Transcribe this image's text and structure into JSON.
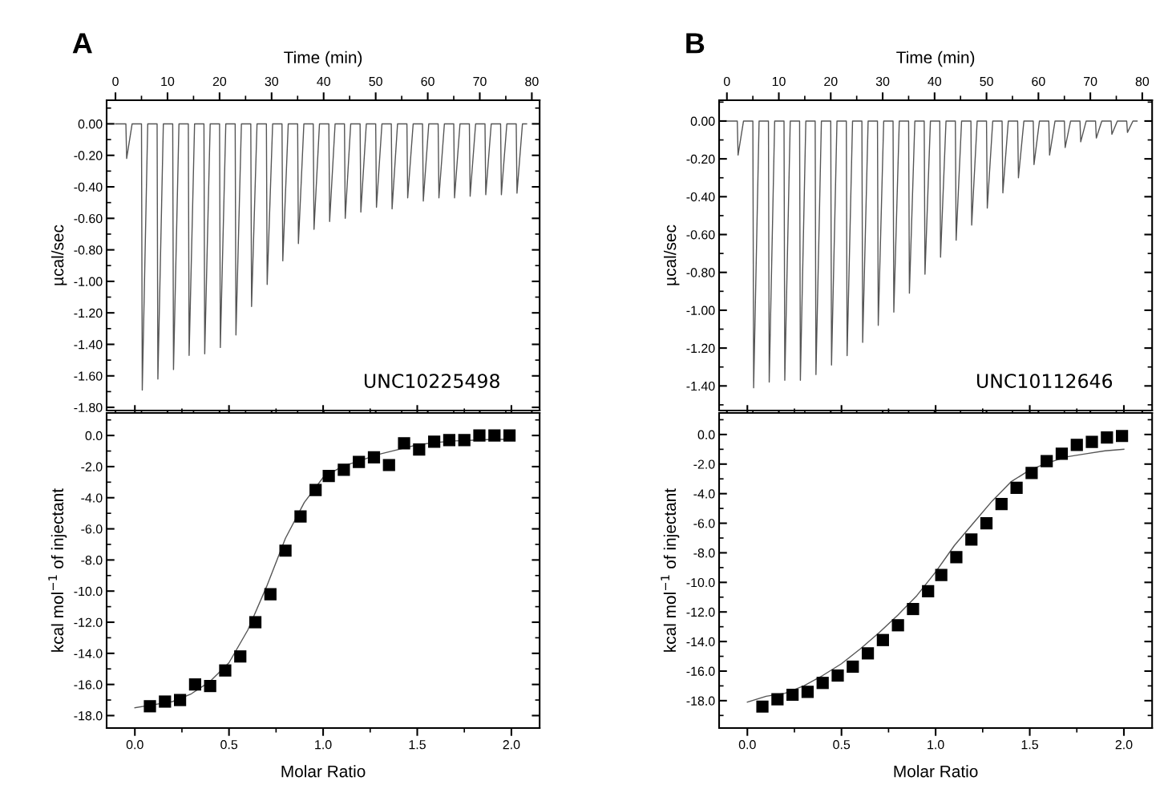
{
  "chart_data": [
    {
      "type": "line",
      "title": "A",
      "xlabel": "Time (min)",
      "ylabel": "µcal/sec",
      "annotations": [
        "UNC10225498"
      ],
      "xlim": [
        -1.7,
        81.5
      ],
      "xticks": [
        0,
        10,
        20,
        30,
        40,
        50,
        60,
        70,
        80
      ],
      "ylim": [
        -1.82,
        0.15
      ],
      "yticks": [
        {
          "value": 0,
          "label": "0.00"
        },
        {
          "value": -0.2,
          "label": "-0.20"
        },
        {
          "value": -0.4,
          "label": "-0.40"
        },
        {
          "value": -0.6,
          "label": "-0.60"
        },
        {
          "value": -0.8,
          "label": "-0.80"
        },
        {
          "value": -1.0,
          "label": "-1.00"
        },
        {
          "value": -1.2,
          "label": "-1.20"
        },
        {
          "value": -1.4,
          "label": "-1.40"
        },
        {
          "value": -1.6,
          "label": "-1.60"
        },
        {
          "value": -1.8,
          "label": "-1.80"
        }
      ],
      "series": [
        {
          "color": "#555555",
          "x": [
            0,
            2,
            2.15,
            3.2,
            5,
            5.15,
            6.2,
            8,
            8.15,
            9.2,
            11,
            11.15,
            12.2,
            14,
            14.15,
            15.2,
            17,
            17.15,
            18.2,
            20,
            20.15,
            21.2,
            23,
            23.15,
            24.2,
            26,
            26.15,
            27.2,
            29,
            29.15,
            30.2,
            32,
            32.15,
            33.2,
            35,
            35.15,
            36.2,
            38,
            38.15,
            39.2,
            41,
            41.15,
            42.2,
            44,
            44.15,
            45.2,
            47,
            47.15,
            48.2,
            50,
            50.15,
            51.2,
            53,
            53.15,
            54.2,
            56,
            56.15,
            57.2,
            59,
            59.15,
            60.2,
            62,
            62.15,
            63.2,
            65,
            65.15,
            66.2,
            68,
            68.15,
            69.2,
            71,
            71.15,
            72.2,
            74,
            74.15,
            75.2,
            77,
            77.15,
            78.2,
            79
          ],
          "values": [
            0,
            0,
            -0.22,
            0,
            0,
            -1.69,
            0,
            0,
            -1.62,
            0,
            0,
            -1.56,
            0,
            0,
            -1.47,
            0,
            0,
            -1.46,
            0,
            0,
            -1.42,
            0,
            0,
            -1.34,
            0,
            0,
            -1.16,
            0,
            0,
            -1.02,
            0,
            0,
            -0.87,
            0,
            0,
            -0.76,
            0,
            0,
            -0.67,
            0,
            0,
            -0.62,
            0,
            0,
            -0.6,
            0,
            0,
            -0.56,
            0,
            0,
            -0.53,
            0,
            0,
            -0.54,
            0,
            0,
            -0.47,
            0,
            0,
            -0.49,
            0,
            0,
            -0.47,
            0,
            0,
            -0.47,
            0,
            0,
            -0.46,
            0,
            0,
            -0.45,
            0,
            0,
            -0.45,
            0,
            0,
            -0.44,
            0,
            0
          ]
        }
      ]
    },
    {
      "type": "scatter",
      "xlabel": "Molar Ratio",
      "ylabel": "kcal mol$^{−1}$ of injectant",
      "xlim": [
        -0.15,
        2.15
      ],
      "xticks": [
        {
          "value": 0,
          "label": "0.0"
        },
        {
          "value": 0.5,
          "label": "0.5"
        },
        {
          "value": 1.0,
          "label": "1.0"
        },
        {
          "value": 1.5,
          "label": "1.5"
        },
        {
          "value": 2.0,
          "label": "2.0"
        }
      ],
      "ylim": [
        -18.8,
        1.45
      ],
      "yticks": [
        {
          "value": 0,
          "label": "0.0"
        },
        {
          "value": -2,
          "label": "-2.0"
        },
        {
          "value": -4,
          "label": "-4.0"
        },
        {
          "value": -6,
          "label": "-6.0"
        },
        {
          "value": -8,
          "label": "-8.0"
        },
        {
          "value": -10,
          "label": "-10.0"
        },
        {
          "value": -12,
          "label": "-12.0"
        },
        {
          "value": -14,
          "label": "-14.0"
        },
        {
          "value": -16,
          "label": "-16.0"
        },
        {
          "value": -18,
          "label": "-18.0"
        }
      ],
      "series": [
        {
          "type": "scatter",
          "marker": "square",
          "color": "#000000",
          "x": [
            0.08,
            0.16,
            0.24,
            0.32,
            0.4,
            0.48,
            0.56,
            0.64,
            0.72,
            0.8,
            0.88,
            0.96,
            1.03,
            1.11,
            1.19,
            1.27,
            1.35,
            1.43,
            1.51,
            1.59,
            1.67,
            1.75,
            1.83,
            1.91,
            1.99
          ],
          "values": [
            -17.4,
            -17.1,
            -17.0,
            -16.0,
            -16.1,
            -15.1,
            -14.2,
            -12.0,
            -10.2,
            -7.4,
            -5.2,
            -3.5,
            -2.6,
            -2.2,
            -1.7,
            -1.4,
            -1.9,
            -0.5,
            -0.9,
            -0.4,
            -0.3,
            -0.3,
            -0.0,
            -0.0,
            -0.0
          ]
        },
        {
          "type": "line",
          "color": "#555555",
          "x": [
            0.0,
            0.1,
            0.2,
            0.3,
            0.4,
            0.5,
            0.6,
            0.7,
            0.8,
            0.9,
            1.0,
            1.1,
            1.2,
            1.3,
            1.4,
            1.5,
            1.6,
            1.7,
            1.8,
            1.9,
            2.0
          ],
          "values": [
            -17.5,
            -17.3,
            -17.1,
            -16.6,
            -15.8,
            -14.6,
            -12.5,
            -9.7,
            -6.6,
            -4.3,
            -2.7,
            -2.0,
            -1.6,
            -1.2,
            -0.9,
            -0.6,
            -0.45,
            -0.35,
            -0.3,
            -0.25,
            -0.25
          ]
        }
      ]
    },
    {
      "type": "line",
      "title": "B",
      "xlabel": "Time (min)",
      "ylabel": "µcal/sec",
      "annotations": [
        "UNC10112646"
      ],
      "xlim": [
        -1.5,
        81.9
      ],
      "xticks": [
        0,
        10,
        20,
        30,
        40,
        50,
        60,
        70,
        80
      ],
      "ylim": [
        -1.53,
        0.11
      ],
      "yticks": [
        {
          "value": 0,
          "label": "0.00"
        },
        {
          "value": -0.2,
          "label": "-0.20"
        },
        {
          "value": -0.4,
          "label": "-0.40"
        },
        {
          "value": -0.6,
          "label": "-0.60"
        },
        {
          "value": -0.8,
          "label": "-0.80"
        },
        {
          "value": -1.0,
          "label": "-1.00"
        },
        {
          "value": -1.2,
          "label": "-1.20"
        },
        {
          "value": -1.4,
          "label": "-1.40"
        }
      ],
      "series": [
        {
          "color": "#555555",
          "x": [
            0,
            2,
            2.15,
            3.2,
            5,
            5.15,
            6.2,
            8,
            8.15,
            9.2,
            11,
            11.15,
            12.2,
            14,
            14.15,
            15.2,
            17,
            17.15,
            18.2,
            20,
            20.15,
            21.2,
            23,
            23.15,
            24.2,
            26,
            26.15,
            27.2,
            29,
            29.15,
            30.2,
            32,
            32.15,
            33.2,
            35,
            35.15,
            36.2,
            38,
            38.15,
            39.2,
            41,
            41.15,
            42.2,
            44,
            44.15,
            45.2,
            47,
            47.15,
            48.2,
            50,
            50.15,
            51.2,
            53,
            53.15,
            54.2,
            56,
            56.15,
            57.2,
            59,
            59.15,
            60.2,
            62,
            62.15,
            63.2,
            65,
            65.15,
            66.2,
            68,
            68.15,
            69.2,
            71,
            71.15,
            72.2,
            74,
            74.15,
            75.2,
            77,
            77.15,
            78.2,
            79
          ],
          "values": [
            0,
            0,
            -0.18,
            0,
            0,
            -1.41,
            0,
            0,
            -1.38,
            0,
            0,
            -1.37,
            0,
            0,
            -1.37,
            0,
            0,
            -1.34,
            0,
            0,
            -1.29,
            0,
            0,
            -1.24,
            0,
            0,
            -1.17,
            0,
            0,
            -1.08,
            0,
            0,
            -1.01,
            0,
            0,
            -0.91,
            0,
            0,
            -0.81,
            0,
            0,
            -0.72,
            0,
            0,
            -0.63,
            0,
            0,
            -0.55,
            0,
            0,
            -0.46,
            0,
            0,
            -0.38,
            0,
            0,
            -0.3,
            0,
            0,
            -0.23,
            0,
            0,
            -0.18,
            0,
            0,
            -0.14,
            0,
            0,
            -0.11,
            0,
            0,
            -0.09,
            0,
            0,
            -0.07,
            0,
            0,
            -0.06,
            0,
            0
          ]
        }
      ]
    },
    {
      "type": "scatter",
      "xlabel": "Molar Ratio",
      "ylabel": "kcal mol$^{−1}$ of injectant",
      "xlim": [
        -0.15,
        2.15
      ],
      "xticks": [
        {
          "value": 0,
          "label": "0.0"
        },
        {
          "value": 0.5,
          "label": "0.5"
        },
        {
          "value": 1.0,
          "label": "1.0"
        },
        {
          "value": 1.5,
          "label": "1.5"
        },
        {
          "value": 2.0,
          "label": "2.0"
        }
      ],
      "ylim": [
        -19.85,
        1.46
      ],
      "yticks": [
        {
          "value": 0,
          "label": "0.0"
        },
        {
          "value": -2,
          "label": "-2.0"
        },
        {
          "value": -4,
          "label": "-4.0"
        },
        {
          "value": -6,
          "label": "-6.0"
        },
        {
          "value": -8,
          "label": "-8.0"
        },
        {
          "value": -10,
          "label": "-10.0"
        },
        {
          "value": -12,
          "label": "-12.0"
        },
        {
          "value": -14,
          "label": "-14.0"
        },
        {
          "value": -16,
          "label": "-16.0"
        },
        {
          "value": -18,
          "label": "-18.0"
        }
      ],
      "series": [
        {
          "type": "scatter",
          "marker": "square",
          "color": "#000000",
          "x": [
            0.08,
            0.16,
            0.24,
            0.32,
            0.4,
            0.48,
            0.56,
            0.64,
            0.72,
            0.8,
            0.88,
            0.96,
            1.03,
            1.11,
            1.19,
            1.27,
            1.35,
            1.43,
            1.51,
            1.59,
            1.67,
            1.75,
            1.83,
            1.91,
            1.99
          ],
          "values": [
            -18.4,
            -17.9,
            -17.6,
            -17.4,
            -16.8,
            -16.3,
            -15.7,
            -14.8,
            -13.9,
            -12.9,
            -11.8,
            -10.6,
            -9.5,
            -8.3,
            -7.1,
            -6.0,
            -4.7,
            -3.6,
            -2.6,
            -1.8,
            -1.3,
            -0.7,
            -0.5,
            -0.2,
            -0.1
          ]
        },
        {
          "type": "line",
          "color": "#555555",
          "x": [
            0.0,
            0.1,
            0.2,
            0.3,
            0.4,
            0.5,
            0.6,
            0.7,
            0.8,
            0.9,
            1.0,
            1.1,
            1.2,
            1.3,
            1.4,
            1.5,
            1.6,
            1.7,
            1.8,
            1.9,
            2.0
          ],
          "values": [
            -18.1,
            -17.7,
            -17.5,
            -17.0,
            -16.3,
            -15.5,
            -14.5,
            -13.4,
            -12.2,
            -10.9,
            -9.3,
            -7.5,
            -6.0,
            -4.5,
            -3.2,
            -2.4,
            -1.9,
            -1.5,
            -1.3,
            -1.1,
            -1.0
          ]
        }
      ]
    }
  ]
}
